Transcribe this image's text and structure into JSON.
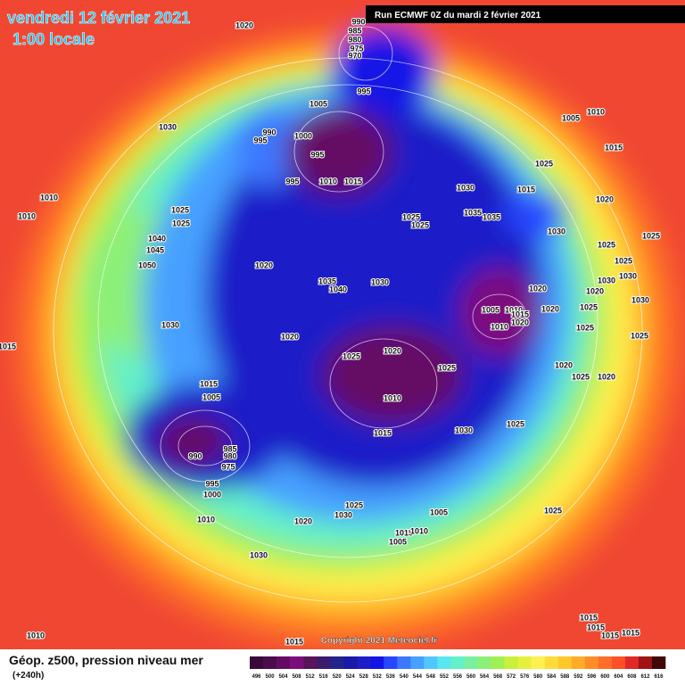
{
  "header": {
    "date": "vendredi 12 février 2021",
    "time": "1:00 locale",
    "run": "Run ECMWF 0Z du mardi 2 février 2021"
  },
  "footer": {
    "parameter": "Géop. z500, pression niveau mer",
    "lead": "(+240h)",
    "copyright": "Copyright 2021 Meteociel.fr"
  },
  "legend": {
    "ticks": [
      496,
      500,
      504,
      508,
      512,
      516,
      520,
      524,
      528,
      532,
      536,
      540,
      544,
      548,
      552,
      556,
      560,
      564,
      568,
      572,
      576,
      580,
      584,
      588,
      592,
      596,
      600,
      604,
      608,
      612,
      616
    ],
    "colors": [
      "#3a0a3a",
      "#4b0c4b",
      "#650a65",
      "#7d0c7d",
      "#5a145a",
      "#3c1a6e",
      "#23238c",
      "#1a1aa8",
      "#1e1ec8",
      "#1414e6",
      "#2846ff",
      "#3c78ff",
      "#46a0ff",
      "#50c8ff",
      "#5ae6f0",
      "#64f0c8",
      "#78f0a0",
      "#8cf078",
      "#a0f050",
      "#c8f03c",
      "#e6f03c",
      "#fff050",
      "#ffdc3c",
      "#ffc828",
      "#ffaa28",
      "#ff8c28",
      "#ff6e28",
      "#ff5028",
      "#e02828",
      "#a01414",
      "#400808"
    ]
  },
  "isobar_labels": [
    990,
    985,
    980,
    975,
    970,
    1020,
    995,
    1005,
    990,
    995,
    1000,
    995,
    995,
    1010,
    1015,
    1030,
    1005,
    1010,
    1015,
    1025,
    1015,
    1020,
    1030,
    1035,
    1035,
    1030,
    1025,
    1025,
    1025,
    1025,
    1010,
    1010,
    1040,
    1045,
    1050,
    1020,
    1035,
    1040,
    1030,
    1025,
    1025,
    1025,
    1030,
    1030,
    1020,
    1030,
    1020,
    1020,
    1025,
    1025,
    1025,
    1005,
    1010,
    1015,
    1020,
    1010,
    1030,
    1020,
    1025,
    1020,
    1025,
    1020,
    1025,
    1020,
    1015,
    1005,
    1010,
    1015,
    1030,
    1025,
    990,
    985,
    980,
    975,
    995,
    1000,
    1010,
    1020,
    1025,
    1030,
    1005,
    1025,
    1015,
    1010,
    1005,
    1030,
    1010,
    1015,
    1015,
    1015,
    1015,
    1015,
    1015
  ]
}
